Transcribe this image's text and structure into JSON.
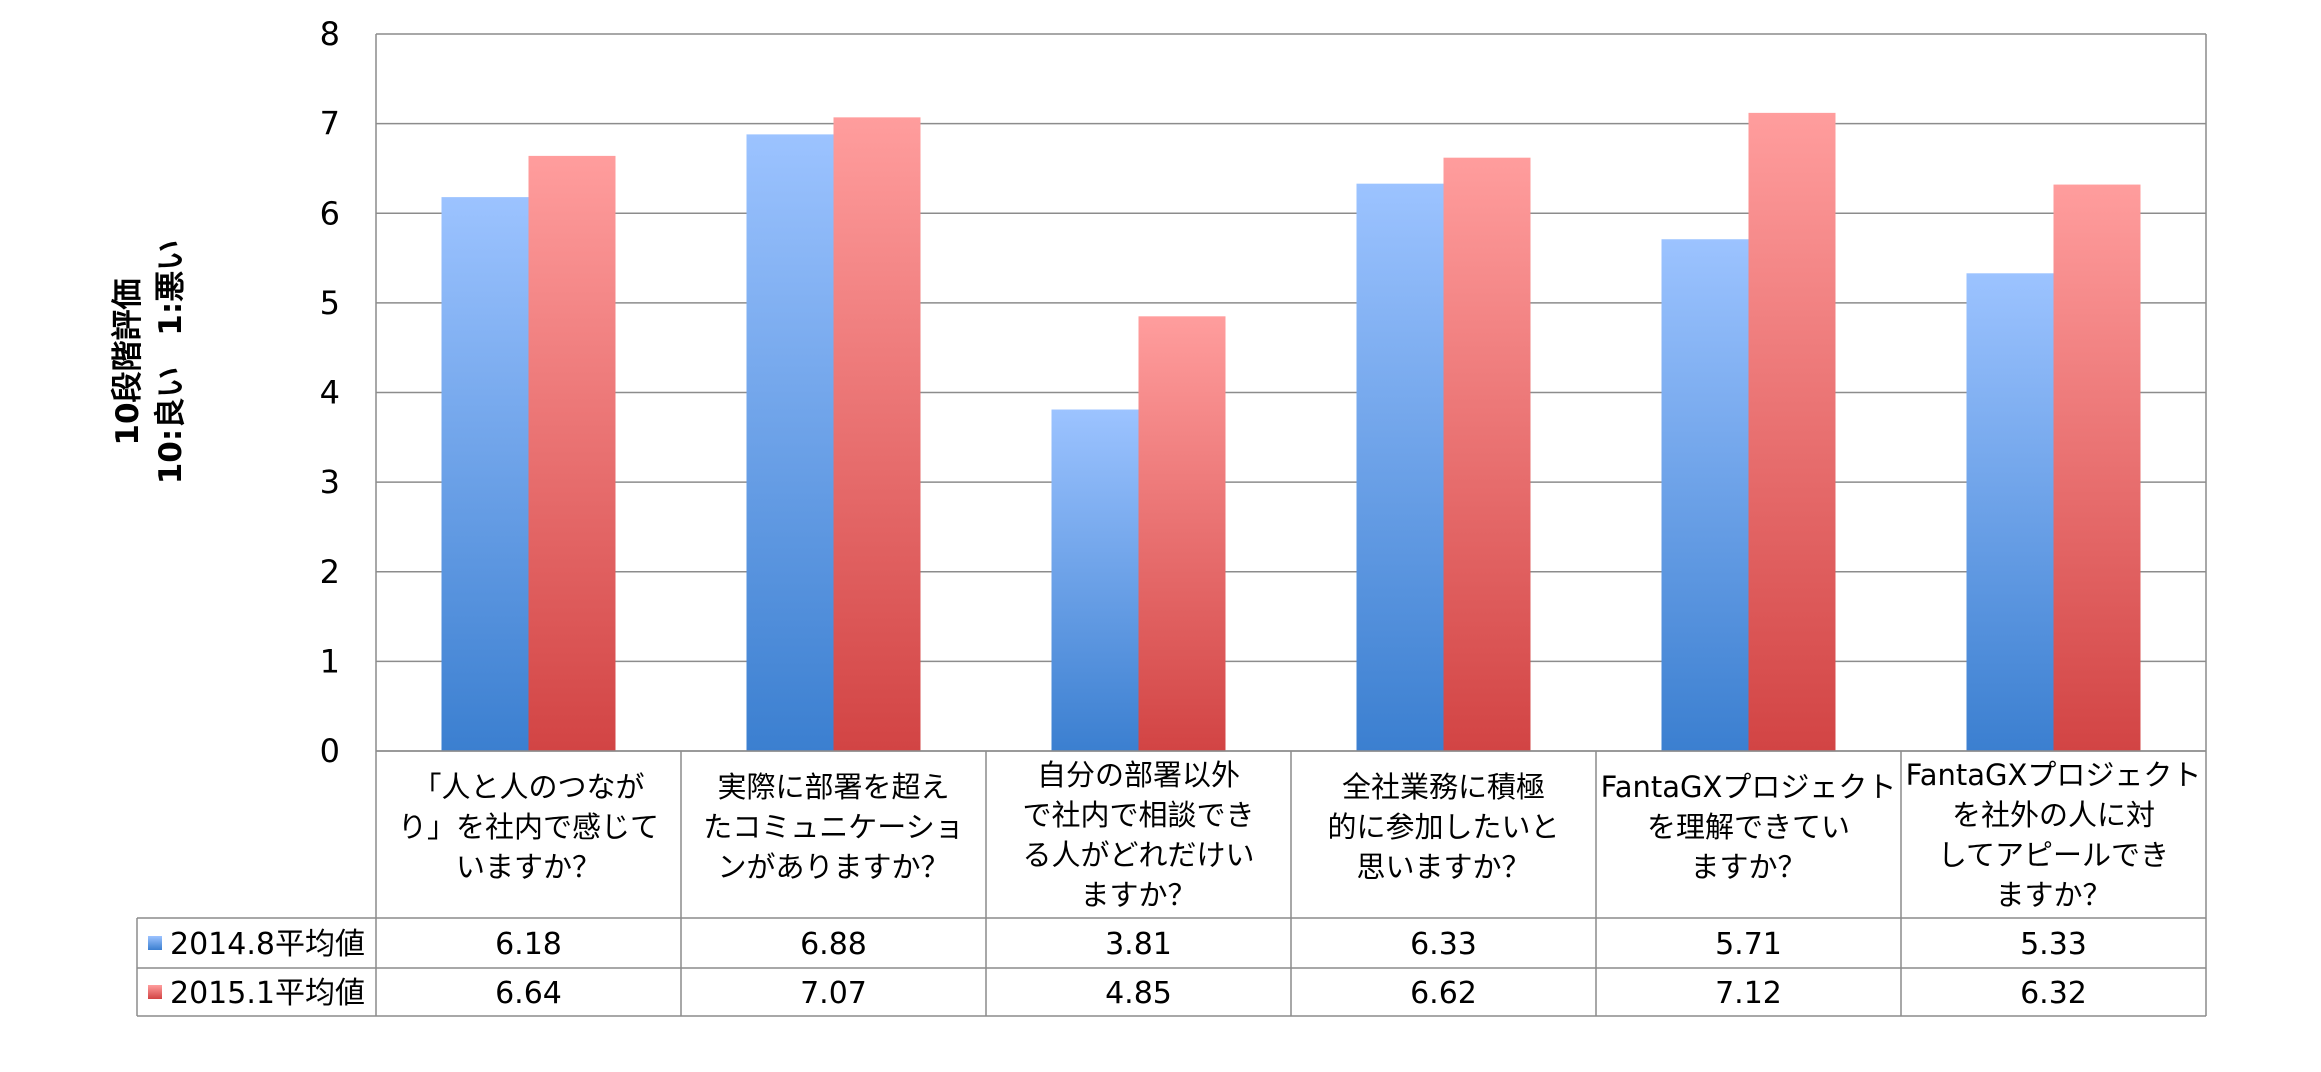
{
  "chart_data": {
    "type": "bar",
    "ylabel_lines": [
      "10段階評価",
      "10:良い　1:悪い"
    ],
    "ylim": [
      0,
      8
    ],
    "yticks": [
      0,
      1,
      2,
      3,
      4,
      5,
      6,
      7,
      8
    ],
    "grid": true,
    "legend_position": "data-table-left",
    "categories": [
      [
        "「人と人のつなが",
        "り」を社内で感じて",
        "いますか？"
      ],
      [
        "実際に部署を超え",
        "たコミュニケーショ",
        "ンがありますか？"
      ],
      [
        "自分の部署以外",
        "で社内で相談でき",
        "る人がどれだけい",
        "ますか？"
      ],
      [
        "全社業務に積極",
        "的に参加したいと",
        "思いますか？"
      ],
      [
        "FantaGXプロジェクト",
        "を理解できてい",
        "ますか？"
      ],
      [
        "FantaGXプロジェクト",
        "を社外の人に対",
        "してアピールでき",
        "ますか？"
      ]
    ],
    "series": [
      {
        "name": "2014.8平均値",
        "values": [
          6.18,
          6.88,
          3.81,
          6.33,
          5.71,
          5.33
        ],
        "labels": [
          "6.18",
          "6.88",
          "3.81",
          "6.33",
          "5.71",
          "5.33"
        ],
        "color_top": "#9cc3ff",
        "color_bottom": "#3b7fd0"
      },
      {
        "name": "2015.1平均値",
        "values": [
          6.64,
          7.07,
          4.85,
          6.62,
          7.12,
          6.32
        ],
        "labels": [
          "6.64",
          "7.07",
          "4.85",
          "6.62",
          "7.12",
          "6.32"
        ],
        "color_top": "#ff9d9d",
        "color_bottom": "#d24444"
      }
    ]
  }
}
